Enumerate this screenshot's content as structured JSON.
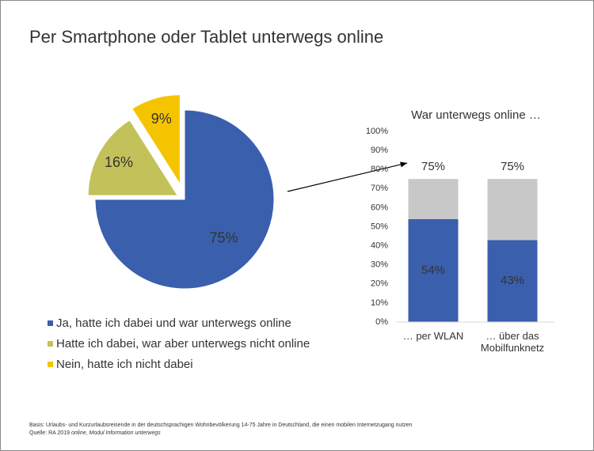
{
  "title": "Per Smartphone oder Tablet unterwegs online",
  "chart_data": [
    {
      "type": "pie",
      "categories": [
        "Ja, hatte ich dabei und war unterwegs online",
        "Hatte ich dabei, war aber unterwegs nicht online",
        "Nein, hatte ich nicht dabei"
      ],
      "values": [
        75,
        16,
        9
      ],
      "value_labels": [
        "75%",
        "16%",
        "9%"
      ],
      "colors": [
        "#3a5fad",
        "#c3c15a",
        "#f5c400"
      ]
    },
    {
      "type": "bar",
      "title": "War unterwegs online …",
      "stacked": true,
      "categories": [
        "… per WLAN",
        "… über das Mobilfunknetz"
      ],
      "series": [
        {
          "color": "#3a5fad",
          "values": [
            54,
            43
          ],
          "value_labels": [
            "54%",
            "43%"
          ]
        },
        {
          "color": "#c8c8c8",
          "values": [
            21,
            32
          ]
        }
      ],
      "totals": [
        75,
        75
      ],
      "total_labels": [
        "75%",
        "75%"
      ],
      "ylim": [
        0,
        100
      ],
      "yticks": [
        {
          "value": 0,
          "label": "0%"
        },
        {
          "value": 10,
          "label": "10%"
        },
        {
          "value": 20,
          "label": "20%"
        },
        {
          "value": 30,
          "label": "30%"
        },
        {
          "value": 40,
          "label": "40%"
        },
        {
          "value": 50,
          "label": "50%"
        },
        {
          "value": 60,
          "label": "60%"
        },
        {
          "value": 70,
          "label": "70%"
        },
        {
          "value": 80,
          "label": "80%"
        },
        {
          "value": 90,
          "label": "90%"
        },
        {
          "value": 100,
          "label": "100%"
        }
      ]
    }
  ],
  "footnote": {
    "basis": "Basis: Urlaubs- und Kurzurlaubsreisende in der deutschsprachigen Wohnbevölkerung 14-75 Jahre in Deutschland, die einen mobilen Internetzugang nutzen",
    "source": [
      "Quelle: RA 2019",
      "online, Modul Information unterwegs"
    ]
  }
}
